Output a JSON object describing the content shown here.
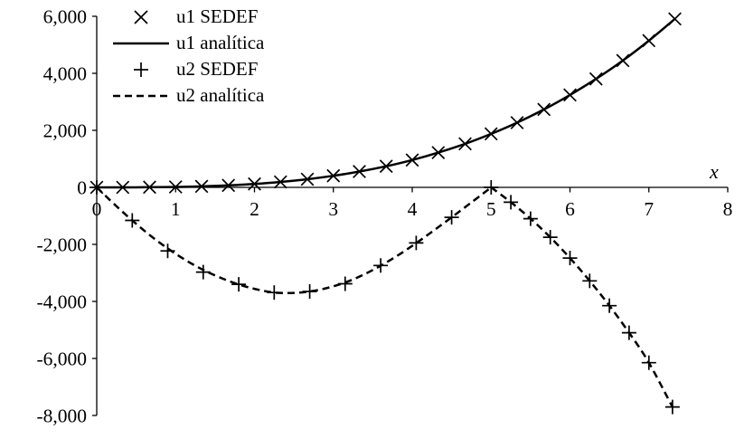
{
  "chart_data": {
    "type": "line",
    "title": "",
    "xlabel": "x",
    "ylabel": "",
    "grid": false,
    "legend_position": "top-left",
    "axis": {
      "xmin": 0,
      "xmax": 8,
      "ymin": -8000,
      "ymax": 6000
    },
    "x_ticks": [
      {
        "v": 0,
        "label": "0"
      },
      {
        "v": 1,
        "label": "1"
      },
      {
        "v": 2,
        "label": "2"
      },
      {
        "v": 3,
        "label": "3"
      },
      {
        "v": 4,
        "label": "4"
      },
      {
        "v": 5,
        "label": "5"
      },
      {
        "v": 6,
        "label": "6"
      },
      {
        "v": 7,
        "label": "7"
      },
      {
        "v": 8,
        "label": "8"
      }
    ],
    "y_ticks": [
      {
        "v": 6000,
        "label": "6,000"
      },
      {
        "v": 4000,
        "label": "4,000"
      },
      {
        "v": 2000,
        "label": "2,000"
      },
      {
        "v": 0,
        "label": "0"
      },
      {
        "v": -2000,
        "label": "-2,000"
      },
      {
        "v": -4000,
        "label": "-4,000"
      },
      {
        "v": -6000,
        "label": "-6,000"
      },
      {
        "v": -8000,
        "label": "-8,000"
      }
    ],
    "colors": {
      "line": "#000000",
      "marker": "#000000",
      "axis": "#000000",
      "text": "#000000"
    },
    "series": [
      {
        "name": "u1 SEDEF",
        "kind": "scatter",
        "marker": "x",
        "x": [
          0,
          0.33,
          0.67,
          1,
          1.33,
          1.67,
          2,
          2.33,
          2.67,
          3,
          3.33,
          3.67,
          4,
          4.33,
          4.67,
          5,
          5.33,
          5.67,
          6,
          6.33,
          6.67,
          7,
          7.33
        ],
        "y": [
          0,
          1,
          5,
          15,
          35,
          70,
          120,
          190,
          285,
          405,
          554,
          741,
          960,
          1218,
          1527,
          1875,
          2271,
          2733,
          3240,
          3804,
          4449,
          5145,
          5908
        ]
      },
      {
        "name": "u1 analítica",
        "kind": "line",
        "dash": "solid",
        "segments": [
          {
            "x": [
              0,
              0.33,
              0.67,
              1,
              1.33,
              1.67,
              2,
              2.33,
              2.67,
              3,
              3.33,
              3.67,
              4,
              4.33,
              4.67,
              5,
              5.33,
              5.67,
              6,
              6.33,
              6.67,
              7,
              7.33
            ],
            "y": [
              0,
              1,
              5,
              15,
              35,
              70,
              120,
              190,
              285,
              405,
              554,
              741,
              960,
              1218,
              1527,
              1875,
              2271,
              2733,
              3240,
              3804,
              4449,
              5145,
              5908
            ]
          }
        ]
      },
      {
        "name": "u2 SEDEF",
        "kind": "scatter",
        "marker": "+",
        "x": [
          0,
          0.45,
          0.9,
          1.35,
          1.8,
          2.25,
          2.7,
          3.15,
          3.6,
          4.05,
          4.5,
          5,
          5.25,
          5.5,
          5.75,
          6,
          6.25,
          6.5,
          6.75,
          7,
          7.3
        ],
        "y": [
          0,
          -1160,
          -2230,
          -2970,
          -3400,
          -3690,
          -3650,
          -3380,
          -2740,
          -1950,
          -1050,
          0,
          -520,
          -1100,
          -1750,
          -2480,
          -3280,
          -4150,
          -5100,
          -6150,
          -7700
        ]
      },
      {
        "name": "u2 analítica",
        "kind": "line",
        "dash": "dashed",
        "segments": [
          {
            "x": [
              0,
              0.25,
              0.5,
              0.75,
              1,
              1.25,
              1.5,
              1.75,
              2,
              2.25,
              2.5,
              2.75,
              3,
              3.25,
              3.5,
              3.75,
              4,
              4.25,
              4.5,
              4.75,
              5
            ],
            "y": [
              0,
              -660,
              -1280,
              -1840,
              -2330,
              -2750,
              -3090,
              -3360,
              -3560,
              -3690,
              -3700,
              -3630,
              -3470,
              -3230,
              -2900,
              -2500,
              -2050,
              -1560,
              -1050,
              -530,
              0
            ]
          },
          {
            "x": [
              5,
              5.25,
              5.5,
              5.75,
              6,
              6.25,
              6.5,
              6.75,
              7,
              7.3
            ],
            "y": [
              0,
              -520,
              -1100,
              -1750,
              -2480,
              -3280,
              -4150,
              -5100,
              -6150,
              -7700
            ]
          }
        ]
      }
    ]
  }
}
